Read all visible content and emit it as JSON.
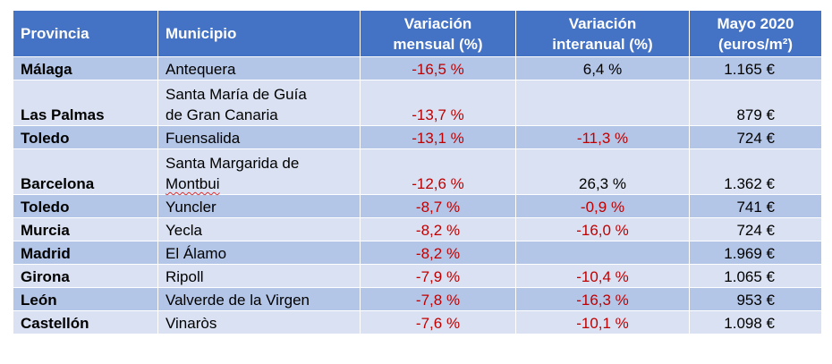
{
  "header": {
    "provincia": "Provincia",
    "municipio": "Municipio",
    "var_mensual_l1": "Variación",
    "var_mensual_l2": "mensual (%)",
    "var_interanual_l1": "Variación",
    "var_interanual_l2": "interanual (%)",
    "precio_l1": "Mayo 2020",
    "precio_l2": "(euros/m²)"
  },
  "rows": [
    {
      "provincia": "Málaga",
      "municipio_l1": "Antequera",
      "municipio_l2": "",
      "mensual": "-16,5 %",
      "interanual": "6,4 %",
      "precio": "1.165 €"
    },
    {
      "provincia": "Las Palmas",
      "municipio_l1": "Santa María de Guía",
      "municipio_l2": "de Gran Canaria",
      "mensual": "-13,7 %",
      "interanual": "",
      "precio": "879 €"
    },
    {
      "provincia": "Toledo",
      "municipio_l1": "Fuensalida",
      "municipio_l2": "",
      "mensual": "-13,1 %",
      "interanual": "-11,3 %",
      "precio": "724 €"
    },
    {
      "provincia": "Barcelona",
      "municipio_l1": "Santa Margarida de",
      "municipio_l2": "Montbui",
      "mensual": "-12,6 %",
      "interanual": "26,3 %",
      "precio": "1.362 €"
    },
    {
      "provincia": "Toledo",
      "municipio_l1": "Yuncler",
      "municipio_l2": "",
      "mensual": "-8,7 %",
      "interanual": "-0,9 %",
      "precio": "741 €"
    },
    {
      "provincia": "Murcia",
      "municipio_l1": "Yecla",
      "municipio_l2": "",
      "mensual": "-8,2 %",
      "interanual": "-16,0 %",
      "precio": "724 €"
    },
    {
      "provincia": "Madrid",
      "municipio_l1": "El Álamo",
      "municipio_l2": "",
      "mensual": "-8,2 %",
      "interanual": "",
      "precio": "1.969 €"
    },
    {
      "provincia": "Girona",
      "municipio_l1": "Ripoll",
      "municipio_l2": "",
      "mensual": "-7,9 %",
      "interanual": "-10,4 %",
      "precio": "1.065 €"
    },
    {
      "provincia": "León",
      "municipio_l1": "Valverde de la Virgen",
      "municipio_l2": "",
      "mensual": "-7,8 %",
      "interanual": "-16,3 %",
      "precio": "953 €"
    },
    {
      "provincia": "Castellón",
      "municipio_l1": "Vinaròs",
      "municipio_l2": "",
      "mensual": "-7,6 %",
      "interanual": "-10,1 %",
      "precio": "1.098 €"
    }
  ],
  "colors": {
    "header_bg": "#4472c4",
    "row_dark": "#b4c6e7",
    "row_light": "#d9e1f2",
    "negative": "#c00000"
  }
}
